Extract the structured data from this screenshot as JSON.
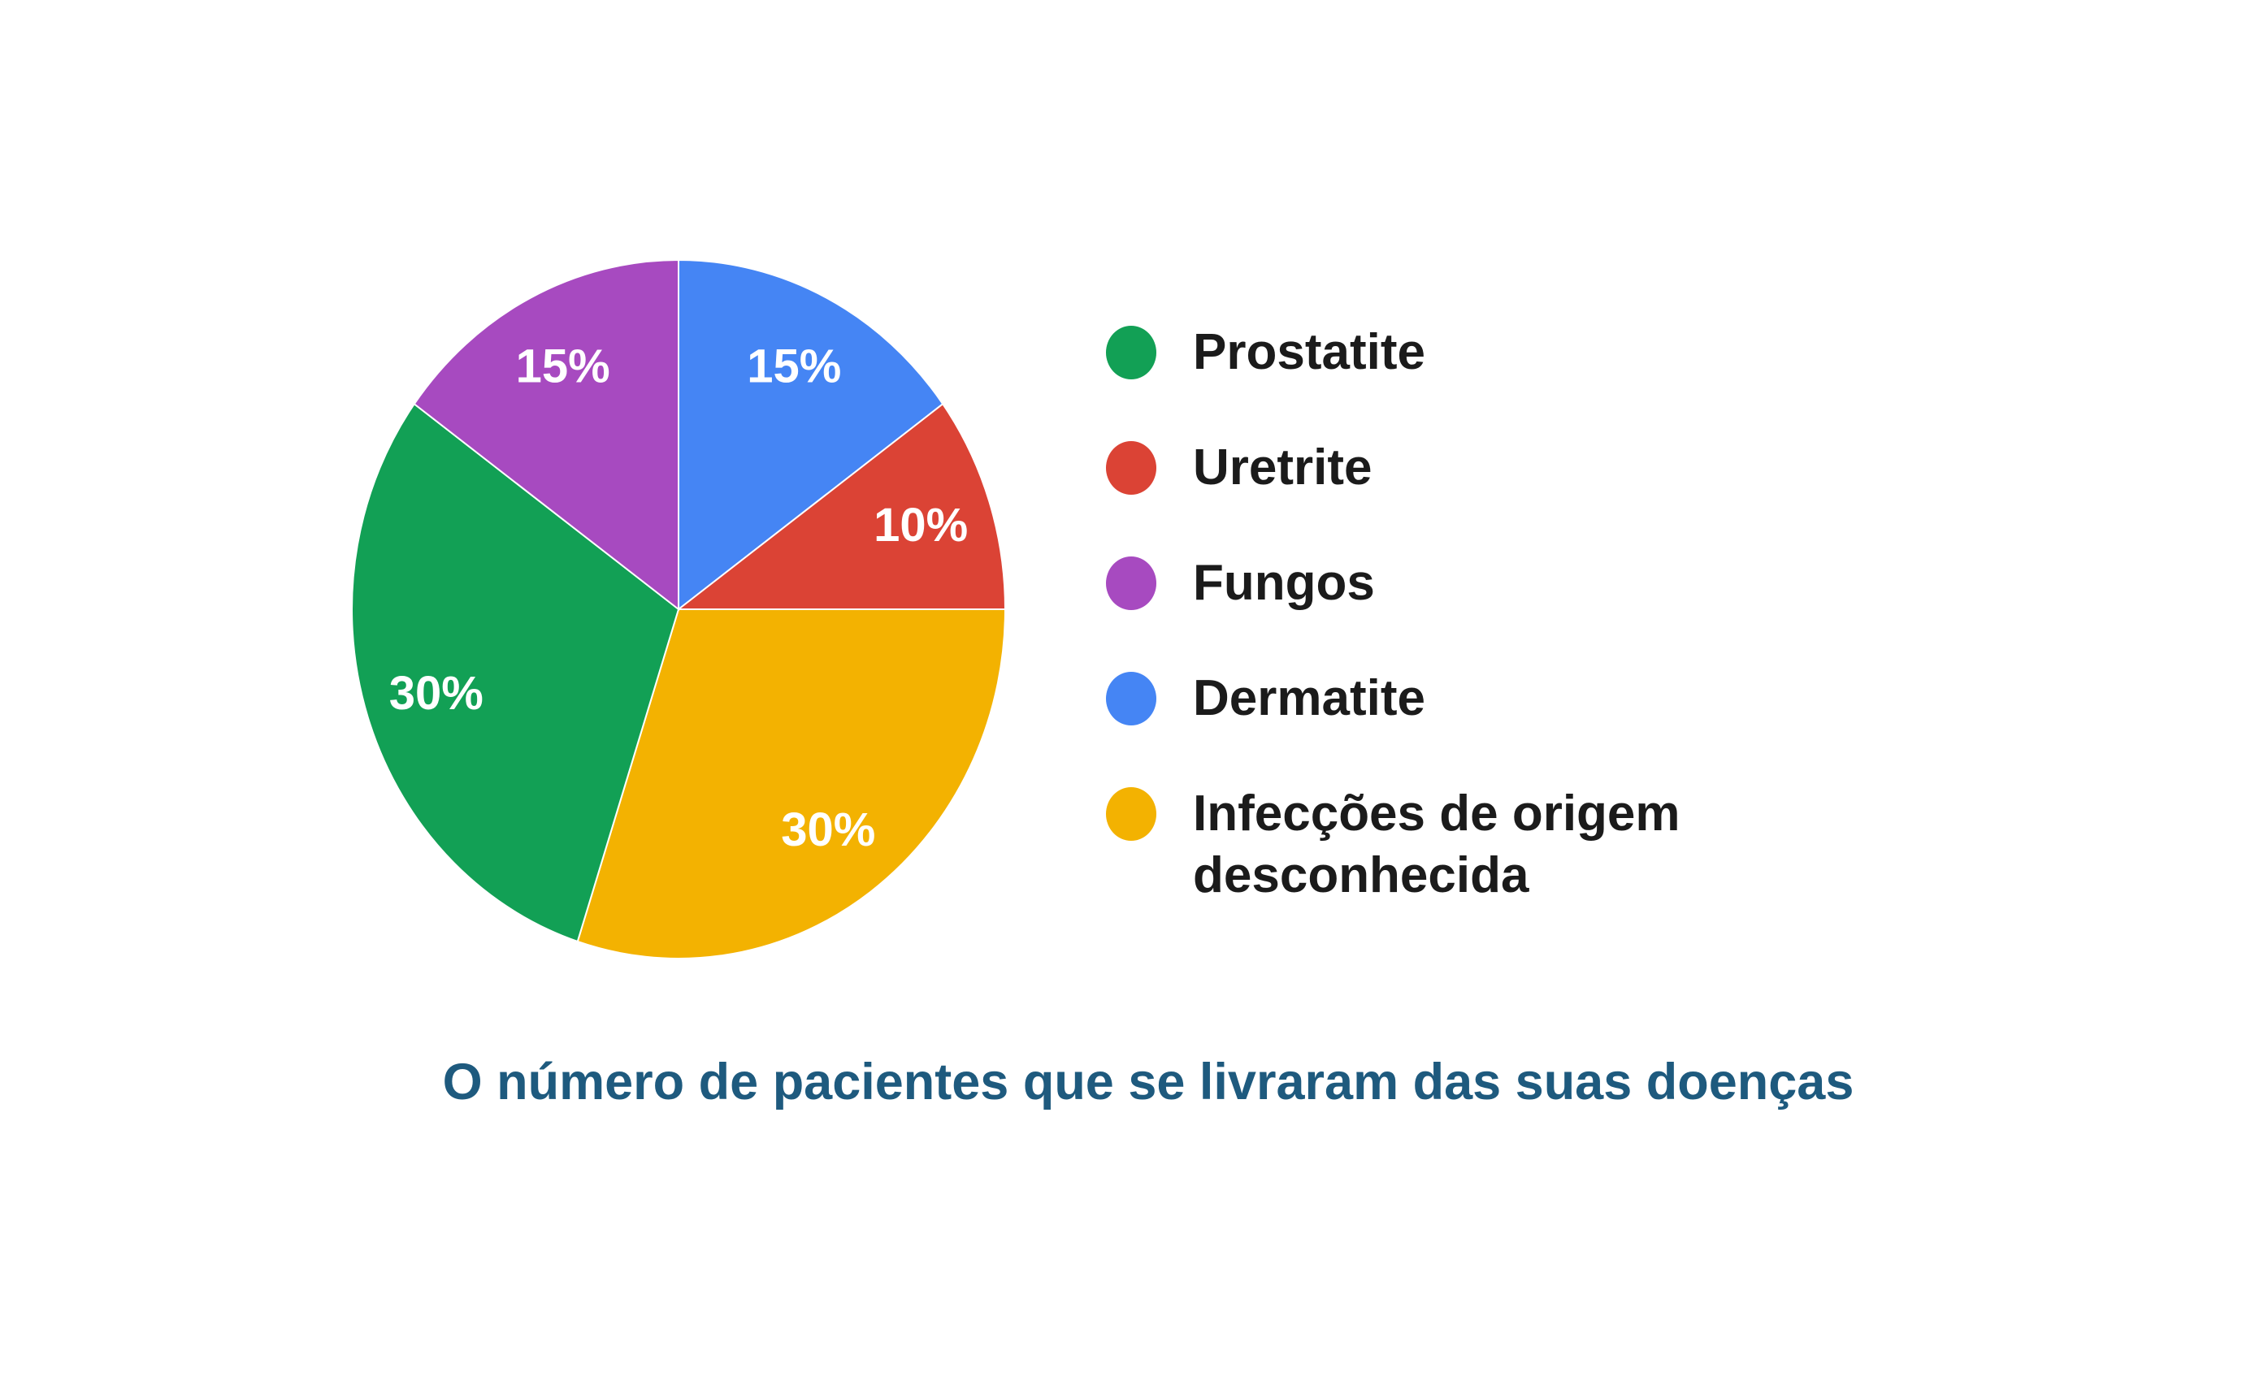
{
  "chart_data": {
    "type": "pie",
    "title": "",
    "caption": "O número de pacientes que se livraram das suas doenças",
    "caption_color": "#1e5a7e",
    "background": "#ffffff",
    "start_angle_deg": 0,
    "direction": "clockwise",
    "legend_position": "right",
    "slice_label_color": "#ffffff",
    "slices": [
      {
        "id": "dermatite",
        "label": "Dermatite",
        "value": 15,
        "display": "15%",
        "color": "#4585f4"
      },
      {
        "id": "uretrite",
        "label": "Uretrite",
        "value": 10,
        "display": "10%",
        "color": "#db4335"
      },
      {
        "id": "infeccoes-de-origem-desconhecida",
        "label": "Infecções de origem desconhecida",
        "value": 30,
        "display": "30%",
        "color": "#f3b201"
      },
      {
        "id": "prostatite",
        "label": "Prostatite",
        "value": 30,
        "display": "30%",
        "color": "#12a055"
      },
      {
        "id": "fungos",
        "label": "Fungos",
        "value": 15,
        "display": "15%",
        "color": "#a74ac0"
      }
    ],
    "legend": [
      {
        "id": "prostatite",
        "label": "Prostatite",
        "color": "#12a055"
      },
      {
        "id": "uretrite",
        "label": "Uretrite",
        "color": "#db4335"
      },
      {
        "id": "fungos",
        "label": "Fungos",
        "color": "#a74ac0"
      },
      {
        "id": "dermatite",
        "label": "Dermatite",
        "color": "#4585f4"
      },
      {
        "id": "infeccoes-de-origem-desconhecida",
        "label": "Infecções de origem desconhecida",
        "label_lines": [
          "Infecções de origem",
          "desconhecida"
        ],
        "color": "#f3b201"
      }
    ]
  }
}
